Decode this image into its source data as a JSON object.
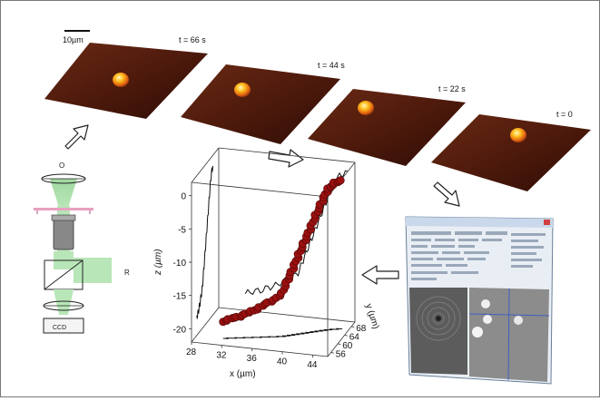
{
  "scale_bar": {
    "label": "10µm"
  },
  "frames": [
    {
      "label": "t = 66 s"
    },
    {
      "label": "t = 44 s"
    },
    {
      "label": "t = 22 s"
    },
    {
      "label": "t = 0"
    }
  ],
  "microscope": {
    "label_top": "O",
    "label_right": "R",
    "camera_label": "CCD"
  },
  "chart_data": {
    "type": "scatter",
    "projection": "3d",
    "xlabel": "x (µm)",
    "ylabel": "y (µm)",
    "zlabel": "z (µm)",
    "x_ticks": [
      "28",
      "32",
      "36",
      "40",
      "44"
    ],
    "y_ticks": [
      "56",
      "60",
      "64",
      "68"
    ],
    "z_ticks": [
      "0",
      "-5",
      "-10",
      "-15",
      "-20"
    ],
    "xlim": [
      28,
      46
    ],
    "ylim": [
      54,
      70
    ],
    "zlim": [
      -22,
      2
    ],
    "trajectory": [
      {
        "x": 31.5,
        "y": 57,
        "z": -19.5
      },
      {
        "x": 32.5,
        "y": 57.5,
        "z": -19
      },
      {
        "x": 33.5,
        "y": 58,
        "z": -18.8
      },
      {
        "x": 34.5,
        "y": 58.5,
        "z": -18.2
      },
      {
        "x": 35.5,
        "y": 59,
        "z": -17.8
      },
      {
        "x": 36.5,
        "y": 59.5,
        "z": -17
      },
      {
        "x": 37.5,
        "y": 60,
        "z": -16.5
      },
      {
        "x": 38.5,
        "y": 60.5,
        "z": -15.5
      },
      {
        "x": 39,
        "y": 61,
        "z": -14
      },
      {
        "x": 39.5,
        "y": 61.5,
        "z": -12.5
      },
      {
        "x": 40,
        "y": 62,
        "z": -11
      },
      {
        "x": 40.5,
        "y": 62.5,
        "z": -9.5
      },
      {
        "x": 41,
        "y": 63,
        "z": -8
      },
      {
        "x": 41.5,
        "y": 63.5,
        "z": -6.5
      },
      {
        "x": 42,
        "y": 64,
        "z": -5
      },
      {
        "x": 42.5,
        "y": 64.5,
        "z": -3.5
      },
      {
        "x": 43,
        "y": 65,
        "z": -2
      },
      {
        "x": 43.5,
        "y": 65.5,
        "z": -0.8
      },
      {
        "x": 44.2,
        "y": 66,
        "z": 0
      },
      {
        "x": 45,
        "y": 66.5,
        "z": 0.3
      }
    ],
    "projections": [
      "xz",
      "yz",
      "xy"
    ]
  },
  "software_window": {
    "title": ""
  }
}
